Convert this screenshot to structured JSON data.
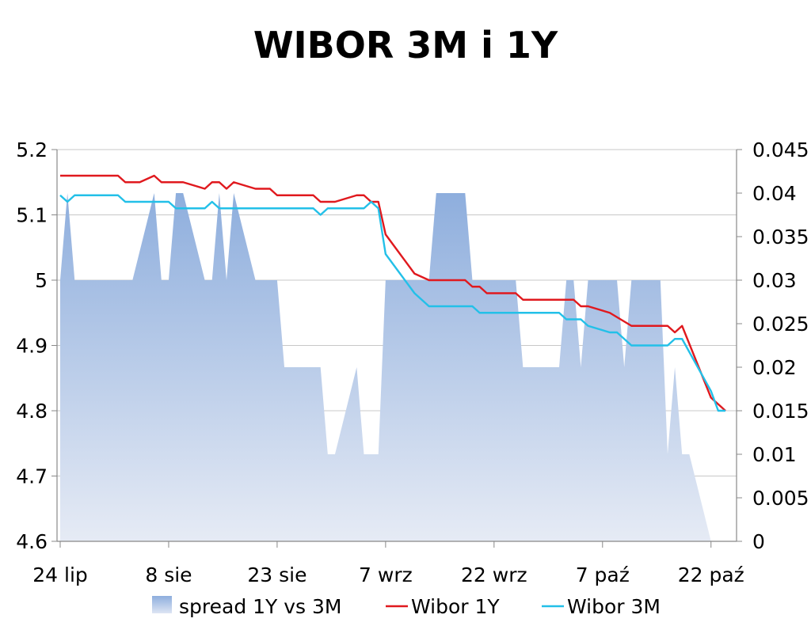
{
  "chart_data": {
    "type": "line",
    "title": "WIBOR 3M i 1Y",
    "x_tick_labels": [
      "24 lip",
      "8 sie",
      "23 sie",
      "7 wrz",
      "22 wrz",
      "7 paź",
      "22 paź"
    ],
    "xlim": [
      0,
      92
    ],
    "y_left": {
      "range": [
        4.6,
        5.2
      ],
      "ticks": [
        "4.6",
        "4.7",
        "4.8",
        "4.9",
        "5",
        "5.1",
        "5.2"
      ]
    },
    "y_right": {
      "range": [
        0,
        0.045
      ],
      "ticks": [
        "0",
        "0.005",
        "0.01",
        "0.015",
        "0.02",
        "0.025",
        "0.03",
        "0.035",
        "0.04",
        "0.045"
      ]
    },
    "grid": "horizontal",
    "legend_position": "bottom",
    "series": [
      {
        "name": "spread 1Y vs 3M",
        "kind": "area",
        "axis": "right",
        "color": "#8eaedd",
        "points": [
          [
            0,
            0.03
          ],
          [
            1,
            0.04
          ],
          [
            2,
            0.03
          ],
          [
            10,
            0.03
          ],
          [
            13,
            0.04
          ],
          [
            14,
            0.03
          ],
          [
            15,
            0.03
          ],
          [
            16,
            0.04
          ],
          [
            17,
            0.04
          ],
          [
            20,
            0.03
          ],
          [
            21,
            0.03
          ],
          [
            22,
            0.04
          ],
          [
            23,
            0.03
          ],
          [
            24,
            0.04
          ],
          [
            27,
            0.03
          ],
          [
            30,
            0.03
          ],
          [
            31,
            0.02
          ],
          [
            36,
            0.02
          ],
          [
            37,
            0.01
          ],
          [
            38,
            0.01
          ],
          [
            41,
            0.02
          ],
          [
            42,
            0.01
          ],
          [
            44,
            0.01
          ],
          [
            45,
            0.03
          ],
          [
            51,
            0.03
          ],
          [
            52,
            0.04
          ],
          [
            56,
            0.04
          ],
          [
            57,
            0.03
          ],
          [
            63,
            0.03
          ],
          [
            64,
            0.02
          ],
          [
            69,
            0.02
          ],
          [
            70,
            0.03
          ],
          [
            71,
            0.03
          ],
          [
            72,
            0.02
          ],
          [
            73,
            0.03
          ],
          [
            77,
            0.03
          ],
          [
            78,
            0.02
          ],
          [
            79,
            0.03
          ],
          [
            83,
            0.03
          ],
          [
            84,
            0.01
          ],
          [
            85,
            0.02
          ],
          [
            86,
            0.01
          ],
          [
            87,
            0.01
          ],
          [
            90,
            0
          ]
        ]
      },
      {
        "name": "Wibor 1Y",
        "kind": "line",
        "axis": "left",
        "color": "#e0191e",
        "points": [
          [
            0,
            5.16
          ],
          [
            8,
            5.16
          ],
          [
            9,
            5.15
          ],
          [
            10,
            5.15
          ],
          [
            11,
            5.15
          ],
          [
            13,
            5.16
          ],
          [
            14,
            5.15
          ],
          [
            17,
            5.15
          ],
          [
            20,
            5.14
          ],
          [
            21,
            5.15
          ],
          [
            22,
            5.15
          ],
          [
            23,
            5.14
          ],
          [
            24,
            5.15
          ],
          [
            27,
            5.14
          ],
          [
            29,
            5.14
          ],
          [
            30,
            5.13
          ],
          [
            35,
            5.13
          ],
          [
            36,
            5.12
          ],
          [
            38,
            5.12
          ],
          [
            41,
            5.13
          ],
          [
            42,
            5.13
          ],
          [
            43,
            5.12
          ],
          [
            44,
            5.12
          ],
          [
            45,
            5.07
          ],
          [
            47,
            5.04
          ],
          [
            49,
            5.01
          ],
          [
            51,
            5.0
          ],
          [
            56,
            5.0
          ],
          [
            57,
            4.99
          ],
          [
            58,
            4.99
          ],
          [
            59,
            4.98
          ],
          [
            63,
            4.98
          ],
          [
            64,
            4.97
          ],
          [
            71,
            4.97
          ],
          [
            72,
            4.96
          ],
          [
            73,
            4.96
          ],
          [
            76,
            4.95
          ],
          [
            79,
            4.93
          ],
          [
            84,
            4.93
          ],
          [
            85,
            4.92
          ],
          [
            86,
            4.93
          ],
          [
            90,
            4.82
          ],
          [
            92,
            4.8
          ]
        ]
      },
      {
        "name": "Wibor 3M",
        "kind": "line",
        "axis": "left",
        "color": "#23c0e8",
        "points": [
          [
            0,
            5.13
          ],
          [
            1,
            5.12
          ],
          [
            2,
            5.13
          ],
          [
            8,
            5.13
          ],
          [
            9,
            5.12
          ],
          [
            15,
            5.12
          ],
          [
            16,
            5.11
          ],
          [
            20,
            5.11
          ],
          [
            21,
            5.12
          ],
          [
            22,
            5.11
          ],
          [
            35,
            5.11
          ],
          [
            36,
            5.1
          ],
          [
            37,
            5.11
          ],
          [
            42,
            5.11
          ],
          [
            43,
            5.12
          ],
          [
            44,
            5.11
          ],
          [
            45,
            5.04
          ],
          [
            47,
            5.01
          ],
          [
            49,
            4.98
          ],
          [
            51,
            4.96
          ],
          [
            52,
            4.96
          ],
          [
            57,
            4.96
          ],
          [
            58,
            4.95
          ],
          [
            69,
            4.95
          ],
          [
            70,
            4.94
          ],
          [
            72,
            4.94
          ],
          [
            73,
            4.93
          ],
          [
            76,
            4.92
          ],
          [
            77,
            4.92
          ],
          [
            79,
            4.9
          ],
          [
            84,
            4.9
          ],
          [
            85,
            4.91
          ],
          [
            86,
            4.91
          ],
          [
            90,
            4.83
          ],
          [
            91,
            4.8
          ],
          [
            92,
            4.8
          ]
        ]
      }
    ]
  }
}
